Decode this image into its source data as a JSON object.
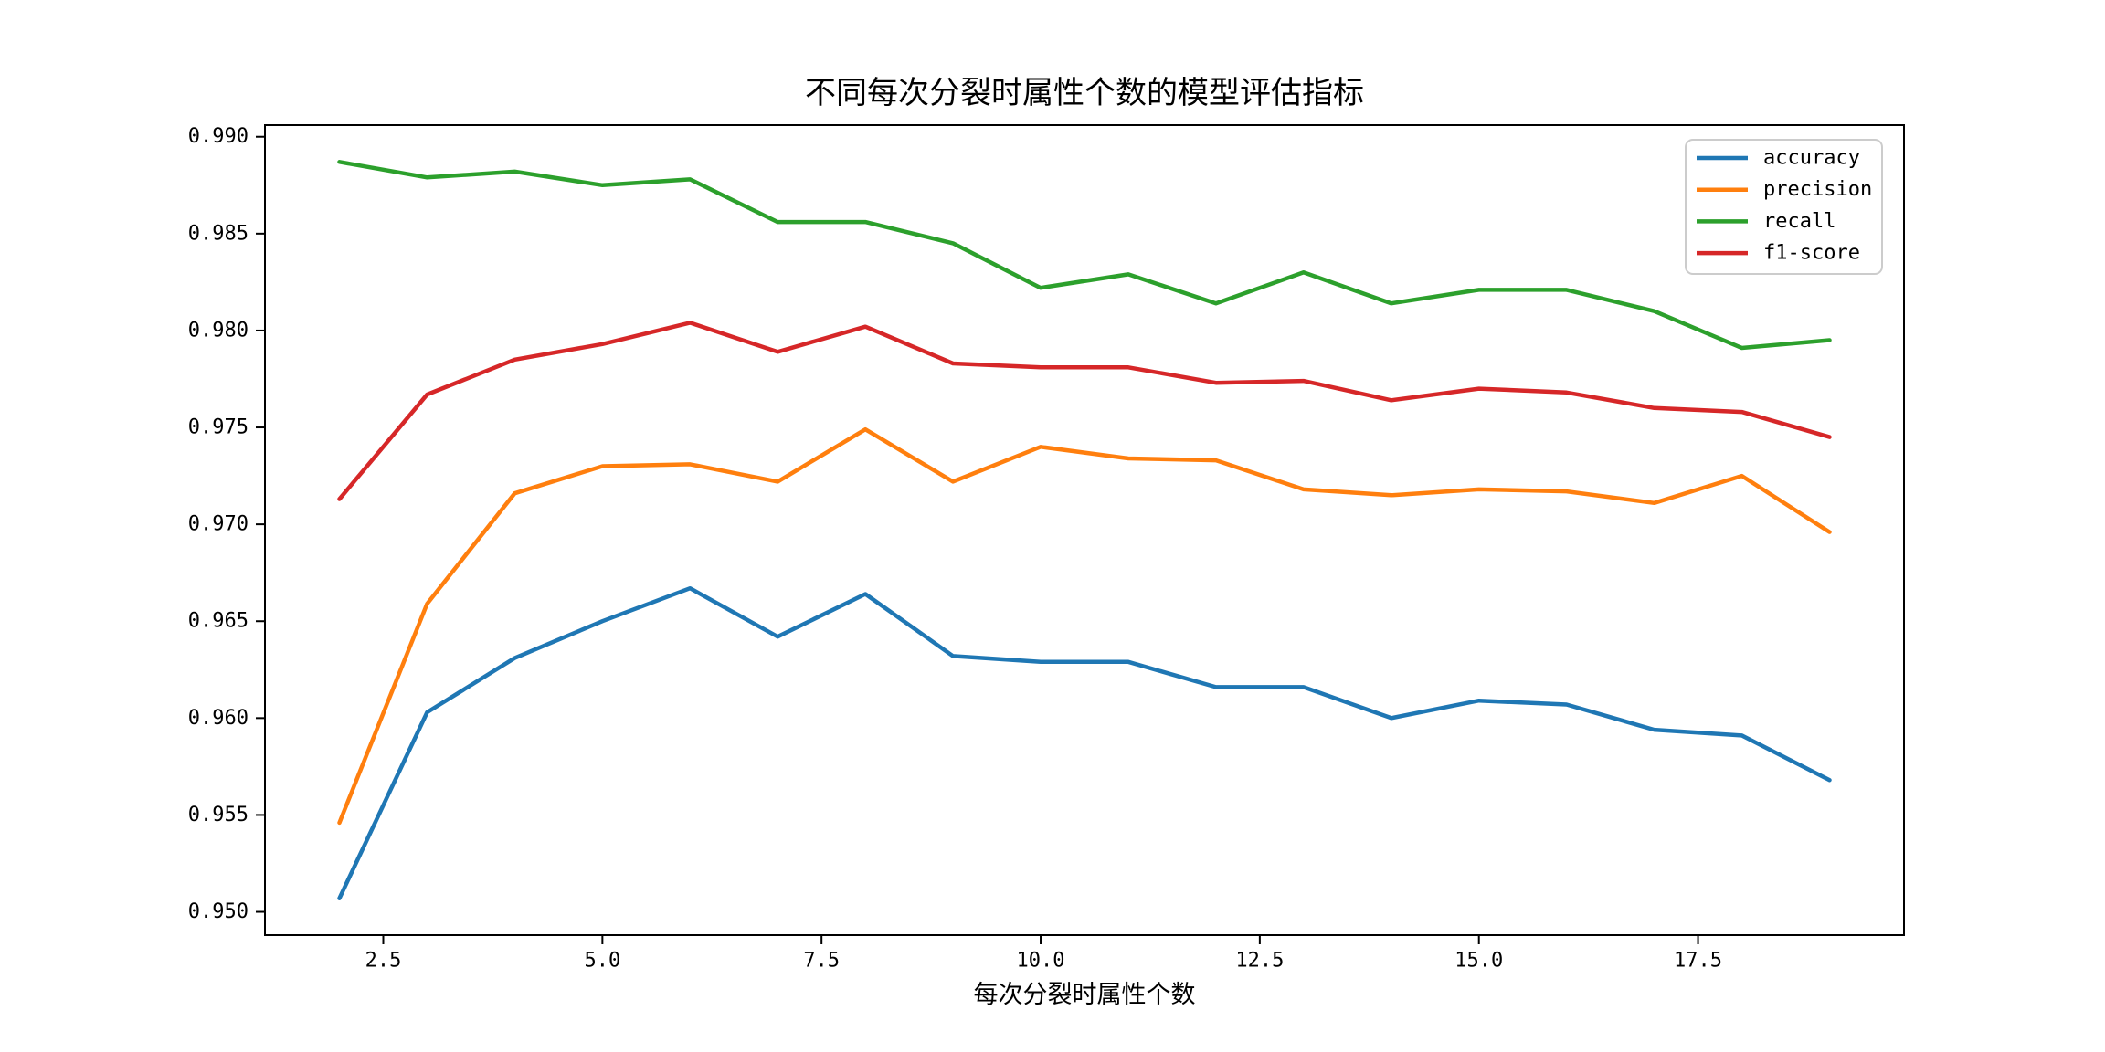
{
  "chart_data": {
    "type": "line",
    "title": "不同每次分裂时属性个数的模型评估指标",
    "xlabel": "每次分裂时属性个数",
    "ylabel": "",
    "x": [
      2,
      3,
      4,
      5,
      6,
      7,
      8,
      9,
      10,
      11,
      12,
      13,
      14,
      15,
      16,
      17,
      18,
      19
    ],
    "series": [
      {
        "name": "accuracy",
        "color": "#1f77b4",
        "values": [
          0.9507,
          0.9603,
          0.9631,
          0.965,
          0.9667,
          0.9642,
          0.9664,
          0.9632,
          0.9629,
          0.9629,
          0.9616,
          0.9616,
          0.96,
          0.9609,
          0.9607,
          0.9594,
          0.9591,
          0.9568
        ]
      },
      {
        "name": "precision",
        "color": "#ff7f0e",
        "values": [
          0.9546,
          0.9659,
          0.9716,
          0.973,
          0.9731,
          0.9722,
          0.9749,
          0.9722,
          0.974,
          0.9734,
          0.9733,
          0.9718,
          0.9715,
          0.9718,
          0.9717,
          0.9711,
          0.9725,
          0.9696
        ]
      },
      {
        "name": "recall",
        "color": "#2ca02c",
        "values": [
          0.9887,
          0.9879,
          0.9882,
          0.9875,
          0.9878,
          0.9856,
          0.9856,
          0.9845,
          0.9822,
          0.9829,
          0.9814,
          0.983,
          0.9814,
          0.9821,
          0.9821,
          0.981,
          0.9791,
          0.9795
        ]
      },
      {
        "name": "f1-score",
        "color": "#d62728",
        "values": [
          0.9713,
          0.9767,
          0.9785,
          0.9793,
          0.9804,
          0.9789,
          0.9802,
          0.9783,
          0.9781,
          0.9781,
          0.9773,
          0.9774,
          0.9764,
          0.977,
          0.9768,
          0.976,
          0.9758,
          0.9745
        ]
      }
    ],
    "xlim": [
      1.15,
      19.85
    ],
    "ylim": [
      0.9488,
      0.9906
    ],
    "xticks": {
      "values": [
        2.5,
        5.0,
        7.5,
        10.0,
        12.5,
        15.0,
        17.5
      ],
      "labels": [
        "2.5",
        "5.0",
        "7.5",
        "10.0",
        "12.5",
        "15.0",
        "17.5"
      ]
    },
    "yticks": {
      "values": [
        0.95,
        0.955,
        0.96,
        0.965,
        0.97,
        0.975,
        0.98,
        0.985,
        0.99
      ],
      "labels": [
        "0.950",
        "0.955",
        "0.960",
        "0.965",
        "0.970",
        "0.975",
        "0.980",
        "0.985",
        "0.990"
      ]
    },
    "legend": {
      "position": "upper right",
      "entries": [
        "accuracy",
        "precision",
        "recall",
        "f1-score"
      ]
    },
    "grid": false,
    "colors": {
      "axis": "#000000",
      "background": "#ffffff",
      "legend_border": "#cccccc"
    }
  }
}
